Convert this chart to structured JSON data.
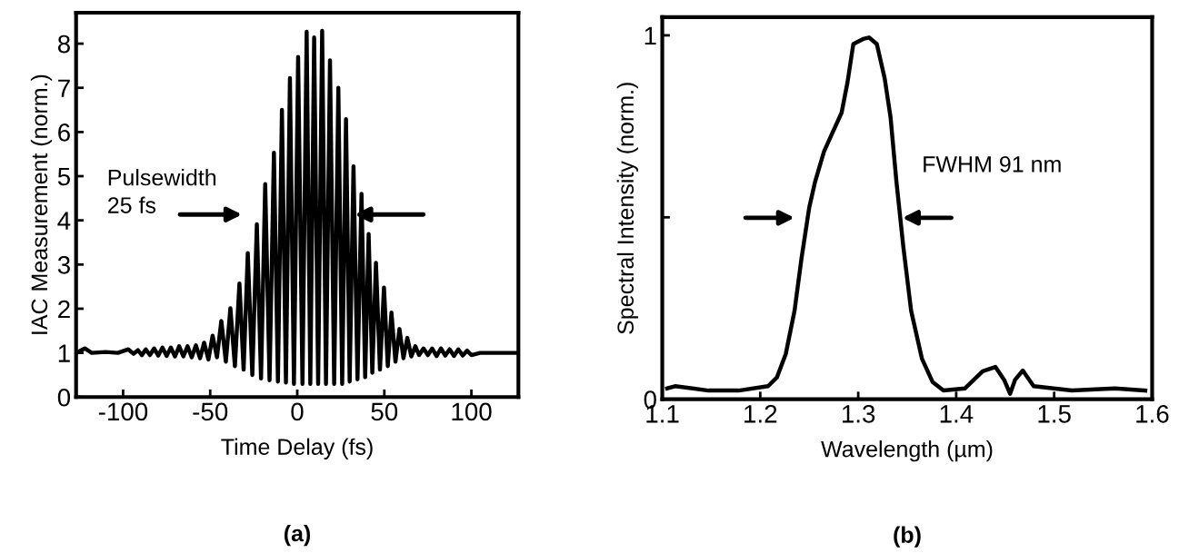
{
  "chart_data": [
    {
      "type": "line",
      "xlabel": "Time Delay (fs)",
      "ylabel": "IAC Measurement (norm.)",
      "xlim": [
        -127,
        127
      ],
      "ylim": [
        0,
        8.7
      ],
      "xticks": [
        -100,
        -50,
        0,
        50,
        100
      ],
      "yticks": [
        0,
        1,
        2,
        3,
        4,
        5,
        6,
        7,
        8
      ],
      "grid": false,
      "legend": false,
      "marker": "none",
      "line_style": "solid",
      "annotations": [
        "Pulsewidth\n25 fs",
        "(a)"
      ],
      "series": [
        {
          "color": "#000000",
          "x": [
            -127,
            -122,
            -118,
            -110,
            -103,
            -97,
            -94,
            -91.5,
            -89.2,
            -87,
            -84.6,
            -82.2,
            -79.8,
            -77.4,
            -75,
            -72.6,
            -70.2,
            -67.8,
            -65.4,
            -63,
            -60.6,
            -58.2,
            -55.8,
            -53.5,
            -51,
            -48.6,
            -46.1,
            -43.6,
            -41,
            -38.4,
            -35.8,
            -33.2,
            -30.8,
            -28.4,
            -25.8,
            -23.2,
            -20.8,
            -18.4,
            -15.9,
            -13.4,
            -11.1,
            -8.8,
            -6.5,
            -4.2,
            -1.9,
            0.5,
            3.0,
            5.4,
            7.5,
            9.7,
            12,
            14.3,
            16.5,
            18.8,
            21.2,
            23.6,
            25.8,
            28,
            30.1,
            32.3,
            34.6,
            36.9,
            39,
            41,
            43.1,
            45.2,
            47.5,
            49.8,
            52,
            54.1,
            56.4,
            58.7,
            61,
            63.2,
            65.5,
            67.8,
            70,
            72.5,
            75,
            77.5,
            80,
            82.5,
            85,
            87.5,
            90,
            92.5,
            95,
            97.5,
            100,
            105,
            127
          ],
          "values": [
            1.0,
            1.1,
            1.0,
            1.02,
            1.0,
            1.08,
            0.98,
            1.06,
            0.95,
            1.08,
            0.95,
            1.1,
            0.94,
            1.12,
            0.93,
            1.12,
            0.92,
            1.15,
            0.92,
            1.15,
            0.9,
            1.17,
            0.88,
            1.23,
            0.85,
            1.39,
            0.9,
            1.72,
            0.8,
            2.01,
            0.7,
            2.57,
            0.62,
            3.26,
            0.5,
            3.91,
            0.42,
            4.82,
            0.38,
            5.53,
            0.35,
            6.5,
            0.33,
            7.22,
            0.3,
            7.7,
            0.3,
            8.27,
            0.3,
            8.14,
            0.3,
            8.29,
            0.3,
            7.62,
            0.3,
            7.0,
            0.3,
            6.29,
            0.35,
            5.22,
            0.4,
            4.6,
            0.45,
            3.69,
            0.55,
            3.04,
            0.62,
            2.48,
            0.7,
            1.91,
            0.8,
            1.54,
            0.88,
            1.34,
            0.92,
            1.15,
            0.95,
            1.1,
            0.95,
            1.1,
            0.93,
            1.1,
            0.94,
            1.08,
            0.93,
            1.08,
            0.94,
            1.05,
            0.95,
            1.0,
            1.0
          ]
        }
      ]
    },
    {
      "type": "line",
      "xlabel": "Wavelength (µm)",
      "ylabel": "Spectral Intensity (norm.)",
      "xlim": [
        1.1,
        1.6
      ],
      "ylim": [
        0,
        1.05
      ],
      "xticks": [
        1.1,
        1.2,
        1.3,
        1.4,
        1.5,
        1.6
      ],
      "yticks": [
        0,
        {
          "value": 0.5,
          "label": null
        },
        1
      ],
      "grid": false,
      "legend": false,
      "marker": "none",
      "line_style": "solid",
      "annotations": [
        "FWHM 91 nm",
        "(b)"
      ],
      "series": [
        {
          "color": "#000000",
          "x": [
            1.105,
            1.113,
            1.147,
            1.178,
            1.208,
            1.217,
            1.226,
            1.235,
            1.242,
            1.25,
            1.256,
            1.265,
            1.273,
            1.283,
            1.289,
            1.295,
            1.305,
            1.311,
            1.319,
            1.327,
            1.333,
            1.339,
            1.346,
            1.354,
            1.365,
            1.376,
            1.387,
            1.409,
            1.427,
            1.44,
            1.449,
            1.455,
            1.46,
            1.468,
            1.479,
            1.518,
            1.562,
            1.593
          ],
          "values": [
            0.03,
            0.036,
            0.024,
            0.024,
            0.036,
            0.06,
            0.124,
            0.243,
            0.385,
            0.527,
            0.598,
            0.68,
            0.728,
            0.787,
            0.87,
            0.976,
            0.99,
            0.994,
            0.976,
            0.882,
            0.775,
            0.598,
            0.42,
            0.243,
            0.112,
            0.047,
            0.024,
            0.03,
            0.077,
            0.089,
            0.053,
            0.015,
            0.053,
            0.079,
            0.036,
            0.024,
            0.03,
            0.024
          ]
        }
      ]
    }
  ]
}
